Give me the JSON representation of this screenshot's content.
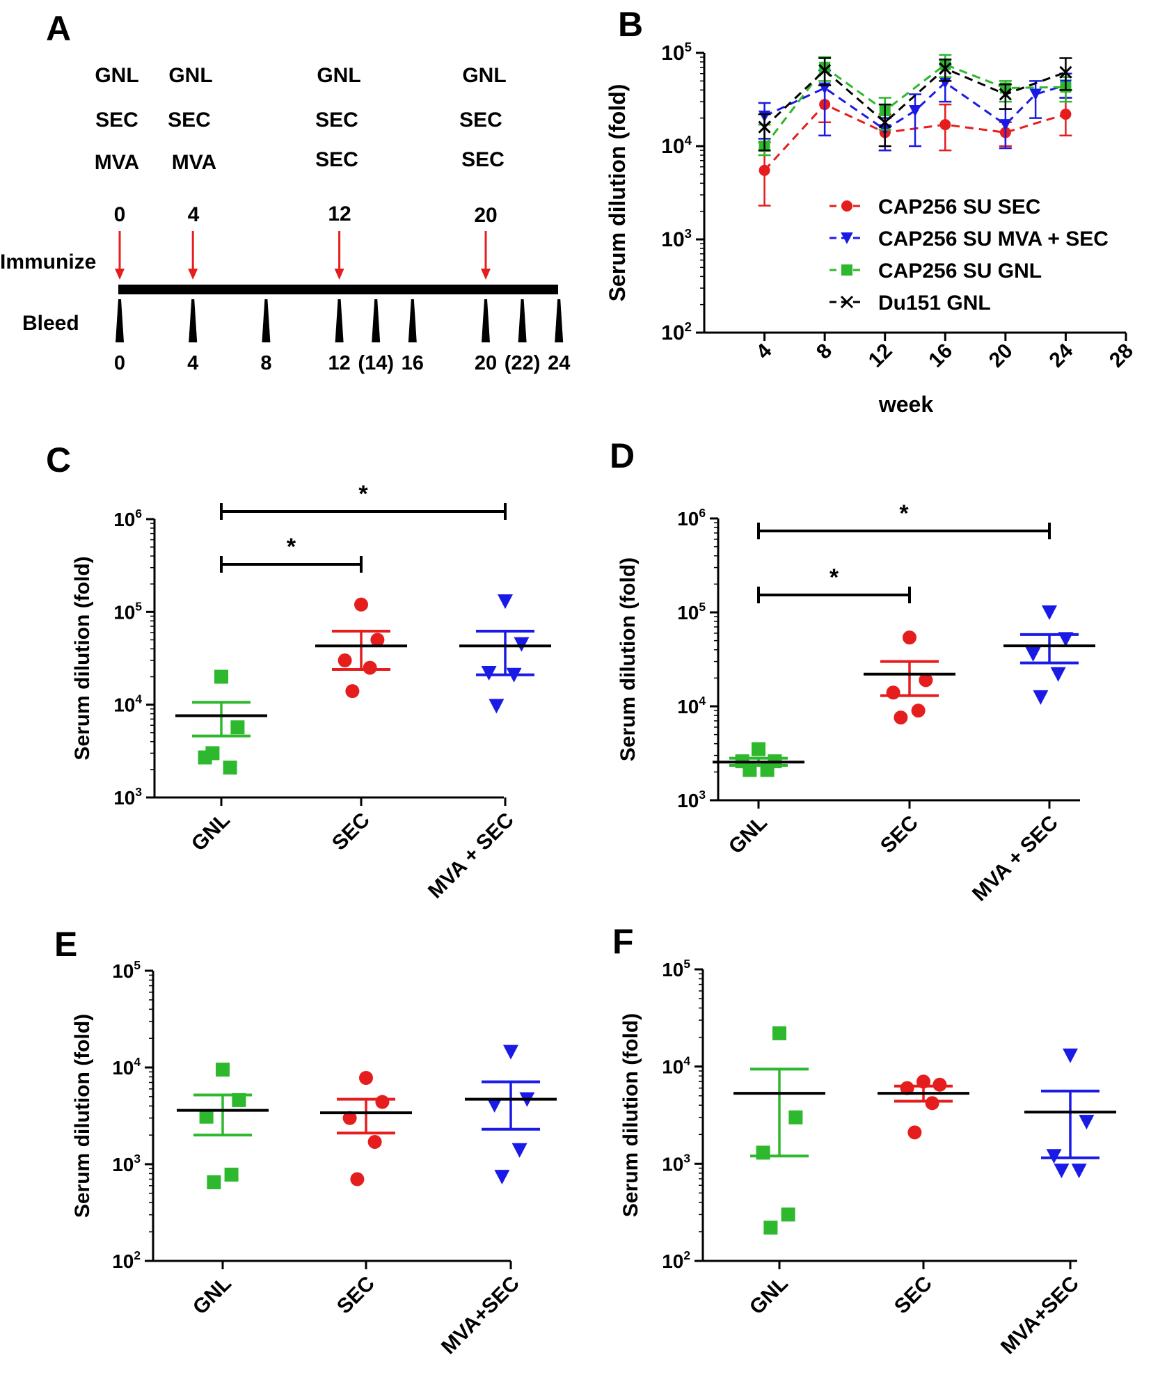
{
  "colors": {
    "gnl": "#2db82d",
    "sec": "#e51d1d",
    "mva_sec": "#1a1ae6",
    "du151": "#000000",
    "arrow": "#e51d1d",
    "axis": "#000000"
  },
  "panel_a": {
    "letter": "A",
    "immunize_label": "Immunize",
    "bleed_label": "Bleed",
    "immunizations": [
      {
        "week": "0",
        "lines": [
          "GNL",
          "SEC",
          "MVA"
        ]
      },
      {
        "week": "4",
        "lines": [
          "GNL",
          "SEC",
          "MVA"
        ]
      },
      {
        "week": "12",
        "lines": [
          "GNL",
          "SEC",
          "SEC"
        ]
      },
      {
        "week": "20",
        "lines": [
          "GNL",
          "SEC",
          "SEC"
        ]
      }
    ],
    "bleed_weeks": [
      0,
      4,
      8,
      12,
      14,
      16,
      20,
      22,
      24
    ],
    "bleed_labels": [
      "0",
      "4",
      "8",
      "12",
      "(14)",
      "16",
      "20",
      "(22)",
      "24"
    ]
  },
  "chart_data": [
    {
      "panel": "B",
      "type": "line",
      "title": "",
      "xlabel": "week",
      "ylabel": "Serum dilution (fold)",
      "yscale": "log",
      "xlim": [
        0,
        28
      ],
      "ylim": [
        100,
        100000
      ],
      "xticks": [
        "4",
        "8",
        "12",
        "16",
        "20",
        "24",
        "28"
      ],
      "yticks": [
        {
          "base": "10",
          "exp": "2"
        },
        {
          "base": "10",
          "exp": "3"
        },
        {
          "base": "10",
          "exp": "4"
        },
        {
          "base": "10",
          "exp": "5"
        }
      ],
      "legend_position": "right",
      "series": [
        {
          "name": "CAP256 SU SEC",
          "color_key": "sec",
          "marker": "circle",
          "x": [
            4,
            8,
            12,
            16,
            20,
            24
          ],
          "y": [
            5500,
            28000,
            14000,
            17000,
            14000,
            22000
          ],
          "err_high": [
            11000,
            45000,
            22000,
            28000,
            18000,
            33000
          ],
          "err_low": [
            2300,
            18000,
            9000,
            9000,
            10000,
            13000
          ]
        },
        {
          "name": "CAP256 SU MVA + SEC",
          "color_key": "mva_sec",
          "marker": "triangle-down",
          "x": [
            4,
            8,
            12,
            14,
            16,
            20,
            22,
            24
          ],
          "y": [
            21000,
            42000,
            15000,
            24000,
            48000,
            17000,
            36000,
            45000
          ],
          "err_high": [
            29000,
            65000,
            20000,
            36000,
            75000,
            25000,
            50000,
            60000
          ],
          "err_low": [
            12000,
            13000,
            9000,
            10000,
            30000,
            9500,
            20000,
            33000
          ]
        },
        {
          "name": "CAP256 SU GNL",
          "color_key": "gnl",
          "marker": "square",
          "x": [
            4,
            8,
            12,
            16,
            20,
            24
          ],
          "y": [
            10000,
            70000,
            24000,
            75000,
            42000,
            43000
          ],
          "err_high": [
            17000,
            90000,
            33000,
            95000,
            50000,
            55000
          ],
          "err_low": [
            8000,
            50000,
            15000,
            55000,
            30000,
            30000
          ]
        },
        {
          "name": "Du151 GNL",
          "color_key": "du151",
          "marker": "x",
          "x": [
            4,
            8,
            12,
            16,
            20,
            24
          ],
          "y": [
            16000,
            65000,
            18000,
            68000,
            36000,
            62000
          ],
          "err_high": [
            22000,
            88000,
            28000,
            85000,
            46000,
            88000
          ],
          "err_low": [
            9000,
            45000,
            10000,
            50000,
            25000,
            40000
          ]
        }
      ]
    },
    {
      "panel": "C",
      "type": "scatter",
      "ylabel": "Serum dilution (fold)",
      "yscale": "log",
      "ylim": [
        1000,
        1000000
      ],
      "yticks": [
        {
          "base": "10",
          "exp": "3"
        },
        {
          "base": "10",
          "exp": "4"
        },
        {
          "base": "10",
          "exp": "5"
        },
        {
          "base": "10",
          "exp": "6"
        }
      ],
      "categories": [
        "GNL",
        "SEC",
        "MVA + SEC"
      ],
      "groups": [
        {
          "name": "GNL",
          "color_key": "gnl",
          "marker": "square",
          "points": [
            20000,
            5700,
            2700,
            2100,
            3000
          ],
          "mean": 7600,
          "sem_low": 4600,
          "sem_high": 10600
        },
        {
          "name": "SEC",
          "color_key": "sec",
          "marker": "circle",
          "points": [
            120000,
            50000,
            30000,
            25000,
            14000
          ],
          "mean": 43000,
          "sem_low": 24000,
          "sem_high": 62000
        },
        {
          "name": "MVA + SEC",
          "color_key": "mva_sec",
          "marker": "triangle-down",
          "points": [
            130000,
            45000,
            22000,
            21000,
            9700
          ],
          "mean": 43000,
          "sem_low": 21000,
          "sem_high": 62000
        }
      ],
      "significance": [
        {
          "from": "GNL",
          "to": "SEC",
          "label": "*"
        },
        {
          "from": "GNL",
          "to": "MVA + SEC",
          "label": "*"
        }
      ]
    },
    {
      "panel": "D",
      "type": "scatter",
      "ylabel": "Serum dilution (fold)",
      "yscale": "log",
      "ylim": [
        1000,
        1000000
      ],
      "yticks": [
        {
          "base": "10",
          "exp": "3"
        },
        {
          "base": "10",
          "exp": "4"
        },
        {
          "base": "10",
          "exp": "5"
        },
        {
          "base": "10",
          "exp": "6"
        }
      ],
      "categories": [
        "GNL",
        "SEC",
        "MVA + SEC"
      ],
      "groups": [
        {
          "name": "GNL",
          "color_key": "gnl",
          "marker": "square",
          "points": [
            3500,
            2600,
            2600,
            2100,
            2100
          ],
          "mean": 2550,
          "sem_low": 2350,
          "sem_high": 2800
        },
        {
          "name": "SEC",
          "color_key": "sec",
          "marker": "circle",
          "points": [
            54000,
            19000,
            14000,
            9000,
            7600
          ],
          "mean": 22000,
          "sem_low": 13000,
          "sem_high": 30000
        },
        {
          "name": "MVA + SEC",
          "color_key": "mva_sec",
          "marker": "triangle-down",
          "points": [
            100000,
            52000,
            36000,
            22000,
            12500
          ],
          "mean": 44000,
          "sem_low": 29000,
          "sem_high": 58000
        }
      ],
      "significance": [
        {
          "from": "GNL",
          "to": "SEC",
          "label": "*"
        },
        {
          "from": "GNL",
          "to": "MVA + SEC",
          "label": "*"
        }
      ]
    },
    {
      "panel": "E",
      "type": "scatter",
      "ylabel": "Serum dilution (fold)",
      "yscale": "log",
      "ylim": [
        100,
        100000
      ],
      "yticks": [
        {
          "base": "10",
          "exp": "2"
        },
        {
          "base": "10",
          "exp": "3"
        },
        {
          "base": "10",
          "exp": "4"
        },
        {
          "base": "10",
          "exp": "5"
        }
      ],
      "categories": [
        "GNL",
        "SEC",
        "MVA+SEC"
      ],
      "groups": [
        {
          "name": "GNL",
          "color_key": "gnl",
          "marker": "square",
          "points": [
            9500,
            4600,
            3100,
            780,
            650
          ],
          "mean": 3600,
          "sem_low": 2000,
          "sem_high": 5200
        },
        {
          "name": "SEC",
          "color_key": "sec",
          "marker": "circle",
          "points": [
            7800,
            4400,
            3000,
            1700,
            700
          ],
          "mean": 3400,
          "sem_low": 2100,
          "sem_high": 4700
        },
        {
          "name": "MVA+SEC",
          "color_key": "mva_sec",
          "marker": "triangle-down",
          "points": [
            14500,
            4700,
            4100,
            1400,
            740
          ],
          "mean": 4700,
          "sem_low": 2300,
          "sem_high": 7100
        }
      ],
      "significance": []
    },
    {
      "panel": "F",
      "type": "scatter",
      "ylabel": "Serum dilution (fold)",
      "yscale": "log",
      "ylim": [
        100,
        100000
      ],
      "yticks": [
        {
          "base": "10",
          "exp": "2"
        },
        {
          "base": "10",
          "exp": "3"
        },
        {
          "base": "10",
          "exp": "4"
        },
        {
          "base": "10",
          "exp": "5"
        }
      ],
      "categories": [
        "GNL",
        "SEC",
        "MVA+SEC"
      ],
      "groups": [
        {
          "name": "GNL",
          "color_key": "gnl",
          "marker": "square",
          "points": [
            22000,
            3000,
            1300,
            300,
            220
          ],
          "mean": 5300,
          "sem_low": 1200,
          "sem_high": 9400
        },
        {
          "name": "SEC",
          "color_key": "sec",
          "marker": "circle",
          "points": [
            7000,
            6500,
            6000,
            4200,
            2100
          ],
          "mean": 5300,
          "sem_low": 4400,
          "sem_high": 6300
        },
        {
          "name": "MVA+SEC",
          "color_key": "mva_sec",
          "marker": "triangle-down",
          "points": [
            13000,
            2700,
            1200,
            850,
            850
          ],
          "mean": 3400,
          "sem_low": 1150,
          "sem_high": 5600
        },
        {
          "name": "_",
          "color_key": "mva_sec",
          "marker": "none",
          "points": [],
          "mean": null,
          "sem_low": null,
          "sem_high": null
        }
      ],
      "significance": []
    }
  ]
}
